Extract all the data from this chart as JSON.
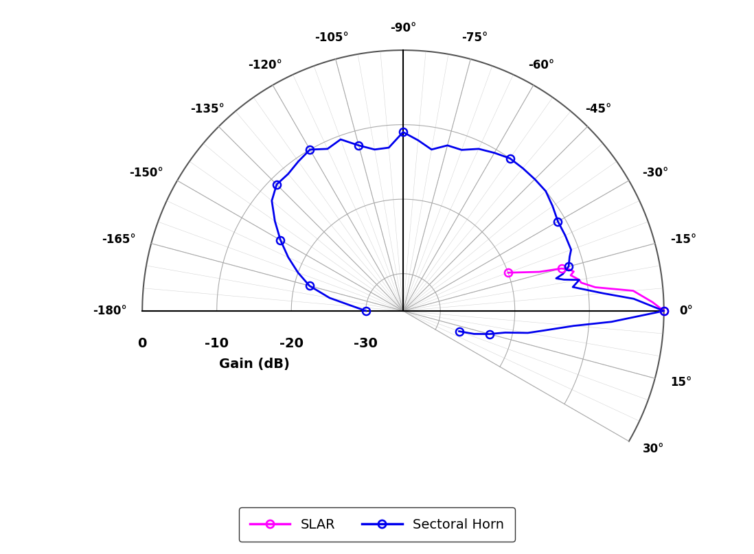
{
  "background_color": "#FFFFFF",
  "grid_color": "#AAAAAA",
  "slar_color": "#FF00FF",
  "horn_color": "#0000EE",
  "r_min_db": -35,
  "r_max_db": 0,
  "r_grid_db": [
    0,
    -10,
    -20,
    -30
  ],
  "angle_labels_display": [
    -180,
    -165,
    -150,
    -135,
    -120,
    -105,
    -90,
    -75,
    -60,
    -45,
    -30,
    -15,
    0,
    15,
    30
  ],
  "gain_label": "Gain (dB)",
  "legend_labels": [
    "SLAR",
    "Sectoral Horn"
  ],
  "slar_data": [
    [
      -20,
      -20
    ],
    [
      -16,
      -16
    ],
    [
      -15,
      -13
    ],
    [
      -14,
      -12
    ],
    [
      -13,
      -11.5
    ],
    [
      -12,
      -12
    ],
    [
      -11,
      -11.5
    ],
    [
      -10,
      -11
    ],
    [
      -9,
      -10.8
    ],
    [
      -7,
      -9
    ],
    [
      -5,
      -4
    ],
    [
      -2,
      -1.5
    ],
    [
      0,
      0
    ]
  ],
  "horn_data": [
    [
      -180,
      -30
    ],
    [
      -170,
      -25
    ],
    [
      -165,
      -22
    ],
    [
      -160,
      -20
    ],
    [
      -155,
      -18
    ],
    [
      -150,
      -16
    ],
    [
      -145,
      -14
    ],
    [
      -140,
      -12
    ],
    [
      -135,
      -11
    ],
    [
      -130,
      -11
    ],
    [
      -125,
      -10.5
    ],
    [
      -120,
      -10
    ],
    [
      -115,
      -11
    ],
    [
      -110,
      -10.5
    ],
    [
      -105,
      -12
    ],
    [
      -100,
      -13
    ],
    [
      -95,
      -13
    ],
    [
      -90,
      -11
    ],
    [
      -85,
      -12
    ],
    [
      -80,
      -13
    ],
    [
      -75,
      -12
    ],
    [
      -70,
      -12
    ],
    [
      -65,
      -11
    ],
    [
      -60,
      -10.5
    ],
    [
      -55,
      -10
    ],
    [
      -50,
      -10
    ],
    [
      -45,
      -10
    ],
    [
      -40,
      -10
    ],
    [
      -35,
      -10.5
    ],
    [
      -30,
      -11
    ],
    [
      -25,
      -11
    ],
    [
      -20,
      -11
    ],
    [
      -18,
      -11.5
    ],
    [
      -15,
      -12
    ],
    [
      -13,
      -13
    ],
    [
      -12,
      -14
    ],
    [
      -11,
      -13
    ],
    [
      -10,
      -11
    ],
    [
      -9,
      -11.5
    ],
    [
      -8,
      -12
    ],
    [
      -5,
      -8
    ],
    [
      -3,
      -4
    ],
    [
      0,
      0
    ],
    [
      3,
      -7
    ],
    [
      5,
      -12
    ],
    [
      8,
      -16
    ],
    [
      10,
      -18
    ],
    [
      12,
      -21
    ],
    [
      15,
      -23
    ],
    [
      18,
      -25
    ],
    [
      20,
      -27
    ]
  ],
  "horn_markers": [
    -180,
    -165,
    -150,
    -135,
    -120,
    -105,
    -90,
    -55,
    -30,
    -15,
    0,
    15,
    20
  ],
  "slar_markers": [
    -20,
    -15,
    0
  ]
}
